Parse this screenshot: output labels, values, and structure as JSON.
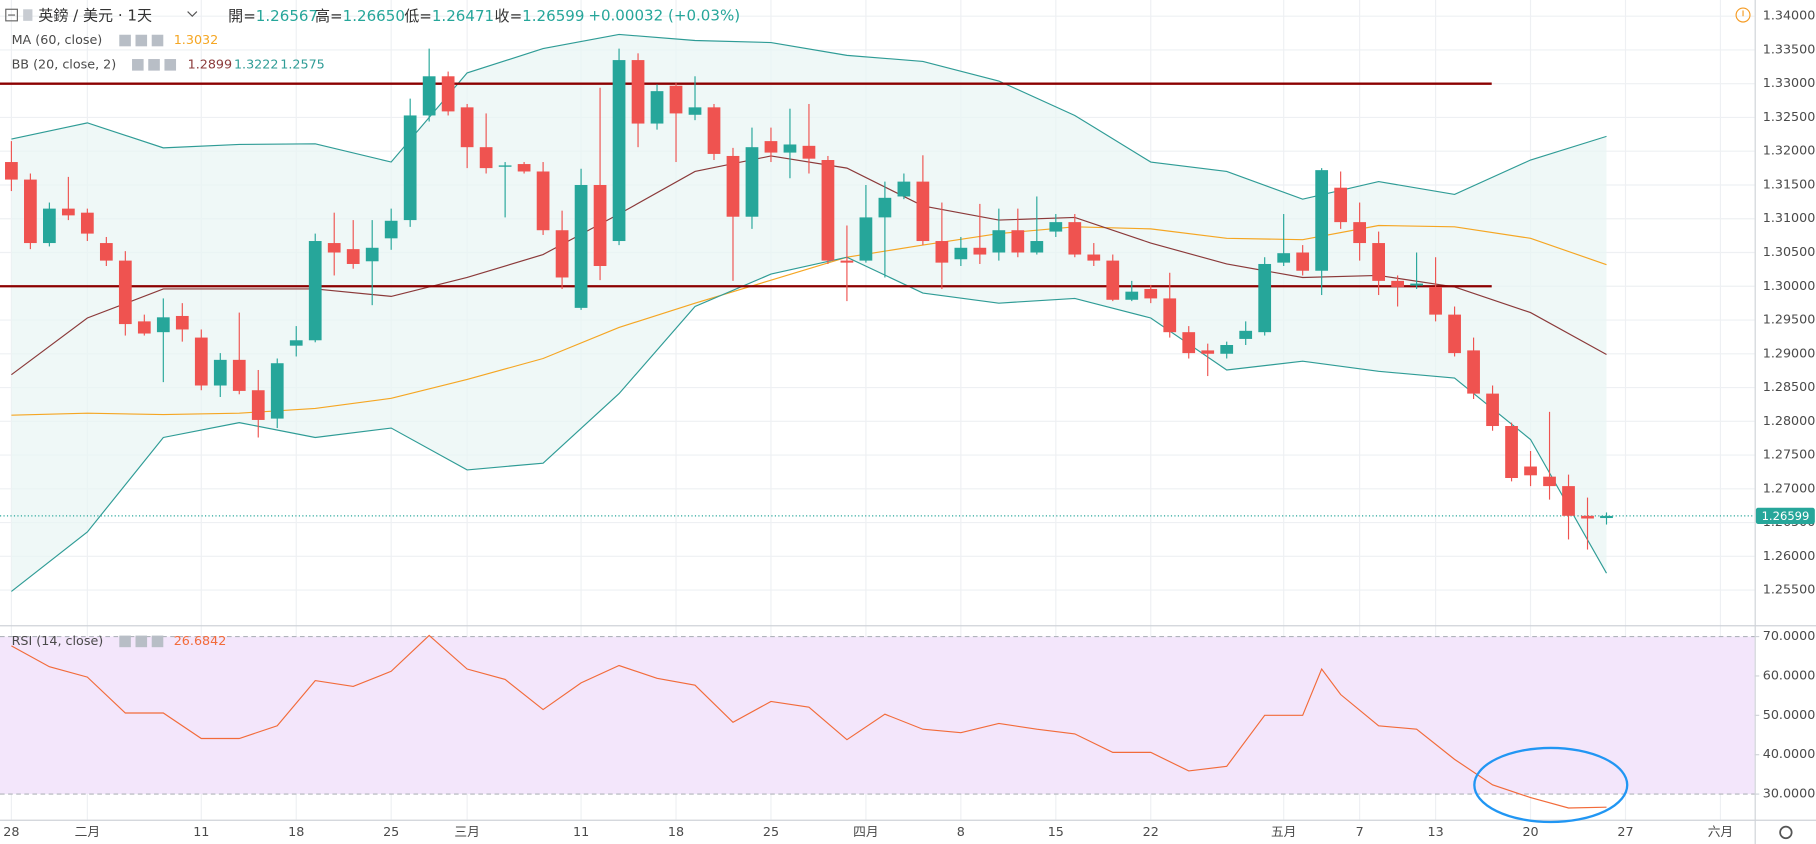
{
  "chart_data": [
    {
      "type": "candlestick",
      "header": {
        "symbol": "英鎊 / 美元 · 1天",
        "fields": [
          [
            "開=",
            "1.26567"
          ],
          [
            "高=",
            "1.26650"
          ],
          [
            "低=",
            "1.26471"
          ],
          [
            "收=",
            "1.26599"
          ]
        ],
        "change": "+0.00032 (+0.03%)"
      },
      "xlim": [
        -0.6,
        91.8
      ],
      "xticks": [
        {
          "value": 0,
          "label": "28"
        },
        {
          "value": 4,
          "label": "二月"
        },
        {
          "value": 10,
          "label": "11"
        },
        {
          "value": 15,
          "label": "18"
        },
        {
          "value": 20,
          "label": "25"
        },
        {
          "value": 24,
          "label": "三月"
        },
        {
          "value": 30,
          "label": "11"
        },
        {
          "value": 35,
          "label": "18"
        },
        {
          "value": 40,
          "label": "25"
        },
        {
          "value": 45,
          "label": "四月"
        },
        {
          "value": 50,
          "label": "8"
        },
        {
          "value": 55,
          "label": "15"
        },
        {
          "value": 60,
          "label": "22"
        },
        {
          "value": 67,
          "label": "五月"
        },
        {
          "value": 71,
          "label": "7"
        },
        {
          "value": 75,
          "label": "13"
        },
        {
          "value": 80,
          "label": "20"
        },
        {
          "value": 85,
          "label": "27"
        },
        {
          "value": 90,
          "label": "六月"
        }
      ],
      "ylim": [
        1.2498,
        1.3424
      ],
      "yticks": [
        {
          "value": 1.255,
          "label": "1.25500"
        },
        {
          "value": 1.26,
          "label": "1.26000"
        },
        {
          "value": 1.265,
          "label": "1.26500"
        },
        {
          "value": 1.27,
          "label": "1.27000"
        },
        {
          "value": 1.275,
          "label": "1.27500"
        },
        {
          "value": 1.28,
          "label": "1.28000"
        },
        {
          "value": 1.285,
          "label": "1.28500"
        },
        {
          "value": 1.29,
          "label": "1.29000"
        },
        {
          "value": 1.295,
          "label": "1.29500"
        },
        {
          "value": 1.3,
          "label": "1.30000"
        },
        {
          "value": 1.305,
          "label": "1.30500"
        },
        {
          "value": 1.31,
          "label": "1.31000"
        },
        {
          "value": 1.315,
          "label": "1.31500"
        },
        {
          "value": 1.32,
          "label": "1.32000"
        },
        {
          "value": 1.325,
          "label": "1.32500"
        },
        {
          "value": 1.33,
          "label": "1.33000"
        },
        {
          "value": 1.335,
          "label": "1.33500"
        },
        {
          "value": 1.34,
          "label": "1.34000"
        }
      ],
      "grid": true,
      "up_color": "#26a69a",
      "down_color": "#ef5350",
      "open": [
        1.3184,
        1.3158,
        1.3064,
        1.3115,
        1.3109,
        1.3064,
        1.3038,
        1.2948,
        1.2932,
        1.2956,
        1.2924,
        1.2853,
        1.2891,
        1.2846,
        1.2804,
        1.2912,
        1.292,
        1.3064,
        1.3055,
        1.3037,
        1.3071,
        1.3098,
        1.3253,
        1.3311,
        1.3265,
        1.3206,
        1.3177,
        1.3181,
        1.317,
        1.3083,
        1.2968,
        1.315,
        1.3067,
        1.3335,
        1.3241,
        1.3297,
        1.3254,
        1.3265,
        1.3193,
        1.3103,
        1.3215,
        1.3198,
        1.3208,
        1.3187,
        1.3038,
        1.3038,
        1.3102,
        1.3133,
        1.3155,
        1.3067,
        1.304,
        1.3057,
        1.305,
        1.3083,
        1.305,
        1.3081,
        1.3095,
        1.3047,
        1.3038,
        1.298,
        1.2996,
        1.2982,
        1.2932,
        1.2905,
        1.29,
        1.2922,
        1.2932,
        1.3035,
        1.305,
        1.3023,
        1.3146,
        1.3095,
        1.3064,
        1.3008,
        1.3001,
        1.2999,
        1.2958,
        1.2905,
        1.2841,
        1.2793,
        1.2733,
        1.2718,
        1.2704,
        1.266,
        1.26567
      ],
      "high": [
        1.3215,
        1.3167,
        1.3124,
        1.3162,
        1.3115,
        1.3073,
        1.3052,
        1.2958,
        1.2982,
        1.2975,
        1.2936,
        1.2901,
        1.2961,
        1.2876,
        1.2893,
        1.2941,
        1.3078,
        1.3109,
        1.3098,
        1.3098,
        1.3115,
        1.3278,
        1.3352,
        1.3318,
        1.327,
        1.3256,
        1.3184,
        1.3184,
        1.3184,
        1.3112,
        1.3174,
        1.3294,
        1.3352,
        1.3345,
        1.3299,
        1.3301,
        1.3311,
        1.327,
        1.3205,
        1.3235,
        1.3235,
        1.3263,
        1.327,
        1.3193,
        1.309,
        1.315,
        1.3155,
        1.3167,
        1.3194,
        1.3124,
        1.3073,
        1.3122,
        1.3115,
        1.3115,
        1.3133,
        1.3107,
        1.3107,
        1.3064,
        1.3047,
        1.3008,
        1.3002,
        1.302,
        1.2941,
        1.2915,
        1.2918,
        1.2948,
        1.3043,
        1.3107,
        1.3061,
        1.3175,
        1.317,
        1.3124,
        1.3081,
        1.3016,
        1.305,
        1.3043,
        1.297,
        1.2924,
        1.2853,
        1.2798,
        1.2756,
        1.2814,
        1.2721,
        1.2687,
        1.2665
      ],
      "low": [
        1.3141,
        1.3055,
        1.3059,
        1.3098,
        1.3067,
        1.303,
        1.2927,
        1.2927,
        1.2858,
        1.2918,
        1.2846,
        1.2836,
        1.284,
        1.2776,
        1.279,
        1.2896,
        1.2917,
        1.3016,
        1.3026,
        1.2972,
        1.3054,
        1.3088,
        1.3244,
        1.3253,
        1.3175,
        1.3167,
        1.3102,
        1.3167,
        1.3076,
        1.2996,
        1.2965,
        1.3009,
        1.3061,
        1.3206,
        1.3232,
        1.3184,
        1.3246,
        1.3187,
        1.3008,
        1.3085,
        1.3184,
        1.316,
        1.3167,
        1.3033,
        1.2978,
        1.3035,
        1.3013,
        1.3129,
        1.3061,
        1.2996,
        1.303,
        1.3033,
        1.3038,
        1.3043,
        1.3047,
        1.3073,
        1.3043,
        1.303,
        1.2978,
        1.2978,
        1.2975,
        1.2924,
        1.2893,
        1.2867,
        1.2893,
        1.2913,
        1.2927,
        1.303,
        1.3016,
        1.2987,
        1.3085,
        1.3038,
        1.2987,
        1.297,
        1.2996,
        1.2948,
        1.2896,
        1.2833,
        1.2786,
        1.2711,
        1.2704,
        1.2684,
        1.2625,
        1.261,
        1.26471
      ],
      "close": [
        1.3158,
        1.3064,
        1.3115,
        1.3105,
        1.3078,
        1.3038,
        1.2944,
        1.293,
        1.2954,
        1.2936,
        1.2853,
        1.2891,
        1.2845,
        1.2802,
        1.2886,
        1.292,
        1.3067,
        1.305,
        1.3033,
        1.3057,
        1.3097,
        1.3253,
        1.3311,
        1.3259,
        1.3206,
        1.3175,
        1.3179,
        1.317,
        1.3083,
        1.3013,
        1.315,
        1.303,
        1.3335,
        1.3241,
        1.3289,
        1.3256,
        1.3265,
        1.3196,
        1.3103,
        1.3206,
        1.3198,
        1.321,
        1.3189,
        1.3038,
        1.3035,
        1.3102,
        1.3131,
        1.3155,
        1.3067,
        1.3035,
        1.3057,
        1.3047,
        1.3083,
        1.305,
        1.3067,
        1.3095,
        1.3047,
        1.3038,
        1.298,
        1.2992,
        1.2982,
        1.2932,
        1.2901,
        1.29,
        1.2913,
        1.2934,
        1.3033,
        1.3049,
        1.3023,
        1.3172,
        1.3095,
        1.3064,
        1.3008,
        1.2999,
        1.3004,
        1.2958,
        1.2901,
        1.2841,
        1.2793,
        1.2716,
        1.272,
        1.2704,
        1.266,
        1.2656,
        1.26599
      ],
      "last_price": 1.26599,
      "hlines": [
        1.33,
        1.3
      ],
      "hline_color": "#8b0000",
      "indicators": [
        {
          "name": "MA (60, close)",
          "color": "#f5a623",
          "x": [
            0,
            4,
            8,
            12,
            16,
            20,
            24,
            28,
            32,
            36,
            40,
            44,
            48,
            52,
            56,
            60,
            64,
            68,
            72,
            76,
            80,
            84
          ],
          "values": [
            1.2809,
            1.2812,
            1.281,
            1.2812,
            1.2819,
            1.2834,
            1.2862,
            1.2893,
            1.2939,
            1.2975,
            1.3009,
            1.3043,
            1.3061,
            1.3078,
            1.3088,
            1.3085,
            1.3071,
            1.3069,
            1.309,
            1.3088,
            1.3071,
            1.3032
          ]
        },
        {
          "name": "BB (20, close, 2)",
          "fill": "#e8f5f3",
          "x": [
            0,
            4,
            8,
            12,
            16,
            20,
            24,
            28,
            32,
            36,
            40,
            44,
            48,
            52,
            56,
            60,
            64,
            68,
            72,
            76,
            80,
            84
          ],
          "lines": [
            {
              "color": "#8b3a3a",
              "values": [
                1.2869,
                1.2953,
                1.2996,
                1.2996,
                1.2996,
                1.2985,
                1.3013,
                1.3047,
                1.3107,
                1.317,
                1.3193,
                1.3175,
                1.3119,
                1.3098,
                1.3102,
                1.3064,
                1.3033,
                1.3013,
                1.3016,
                1.2999,
                1.2961,
                1.2899
              ]
            },
            {
              "color": "#2f9c96",
              "values": [
                1.3218,
                1.3242,
                1.3205,
                1.321,
                1.3211,
                1.3184,
                1.3316,
                1.3352,
                1.3373,
                1.3364,
                1.3361,
                1.3342,
                1.3333,
                1.3304,
                1.3253,
                1.3184,
                1.317,
                1.3129,
                1.3155,
                1.3136,
                1.3187,
                1.3222
              ]
            },
            {
              "color": "#2f9c96",
              "values": [
                1.2548,
                1.2636,
                1.2776,
                1.2798,
                1.2776,
                1.279,
                1.2728,
                1.2738,
                1.2841,
                1.297,
                1.3018,
                1.3043,
                1.299,
                1.2975,
                1.2982,
                1.2953,
                1.2876,
                1.2889,
                1.2874,
                1.2864,
                1.2773,
                1.2575
              ]
            }
          ]
        }
      ]
    },
    {
      "type": "line",
      "xlim": [
        -0.6,
        91.8
      ],
      "ylim": [
        23.5,
        72.6
      ],
      "yticks": [
        {
          "value": 30,
          "label": "30.0000"
        },
        {
          "value": 40,
          "label": "40.0000"
        },
        {
          "value": 50,
          "label": "50.0000"
        },
        {
          "value": 60,
          "label": "60.0000"
        },
        {
          "value": 70,
          "label": "70.0000"
        }
      ],
      "band": [
        30,
        70
      ],
      "band_color": "#f3e6fb",
      "series": [
        {
          "name": "RSI (14, close)",
          "color": "#f26b3a",
          "x": [
            0,
            2,
            4,
            6,
            8,
            10,
            12,
            14,
            16,
            18,
            20,
            22,
            24,
            26,
            28,
            30,
            32,
            34,
            36,
            38,
            40,
            42,
            44,
            46,
            48,
            50,
            52,
            54,
            56,
            58,
            60,
            62,
            64,
            66,
            68,
            69,
            70,
            72,
            74,
            76,
            78,
            80,
            82,
            84
          ],
          "values": [
            67.65,
            62.35,
            59.71,
            50.59,
            50.59,
            44.12,
            44.12,
            47.35,
            58.82,
            57.35,
            61.18,
            70.29,
            61.76,
            59.12,
            51.47,
            58.24,
            62.65,
            59.41,
            57.65,
            48.24,
            53.53,
            52.06,
            43.82,
            50.29,
            46.47,
            45.59,
            47.94,
            46.47,
            45.29,
            40.59,
            40.59,
            35.88,
            37.06,
            50,
            50,
            61.76,
            55.29,
            47.35,
            46.47,
            38.82,
            32.35,
            29.12,
            26.47,
            26.6842
          ]
        }
      ]
    }
  ]
}
